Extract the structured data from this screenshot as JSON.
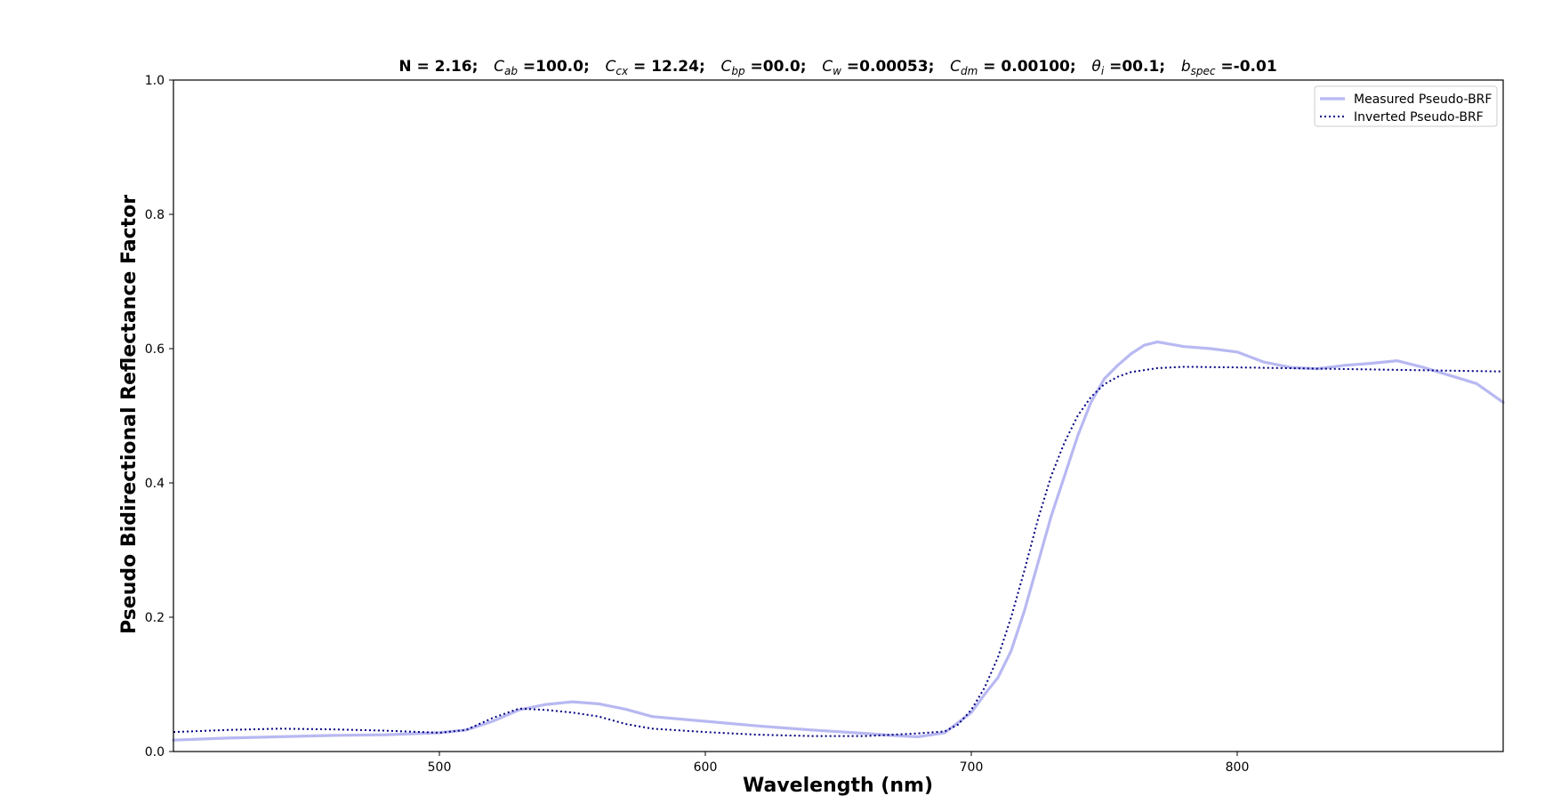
{
  "chart_data": {
    "type": "line",
    "title": {
      "parts": [
        {
          "sym": "",
          "sub": "",
          "val": "N = 2.16;"
        },
        {
          "sym": "C",
          "sub": "ab",
          "val": " =100.0;"
        },
        {
          "sym": "C",
          "sub": "cx",
          "val": " = 12.24;"
        },
        {
          "sym": "C",
          "sub": "bp",
          "val": " =00.0;"
        },
        {
          "sym": "C",
          "sub": "w",
          "val": " =0.00053;"
        },
        {
          "sym": "C",
          "sub": "dm",
          "val": " = 0.00100;"
        },
        {
          "sym": "θ",
          "sub": "i",
          "val": " =00.1;"
        },
        {
          "sym": "b",
          "sub": "spec",
          "val": " =-0.01"
        }
      ]
    },
    "xlabel": "Wavelength (nm)",
    "ylabel": "Pseudo Bidirectional Reflectance Factor",
    "xlim": [
      400,
      900
    ],
    "ylim": [
      0.0,
      1.0
    ],
    "xticks": [
      500,
      600,
      700,
      800
    ],
    "xtick_labels": [
      "500",
      "600",
      "700",
      "800"
    ],
    "yticks": [
      0.0,
      0.2,
      0.4,
      0.6,
      0.8,
      1.0
    ],
    "ytick_labels": [
      "0.0",
      "0.2",
      "0.4",
      "0.6",
      "0.8",
      "1.0"
    ],
    "grid": false,
    "legend": {
      "position": "top-right",
      "entries": [
        "Measured Pseudo-BRF",
        "Inverted Pseudo-BRF"
      ]
    },
    "series": [
      {
        "name": "Measured Pseudo-BRF",
        "color": "#b8b8f2",
        "style": "solid",
        "x": [
          400,
          420,
          440,
          460,
          480,
          500,
          510,
          520,
          530,
          540,
          550,
          560,
          570,
          580,
          600,
          620,
          640,
          660,
          670,
          680,
          690,
          700,
          705,
          710,
          715,
          720,
          725,
          730,
          735,
          740,
          745,
          750,
          755,
          760,
          765,
          770,
          780,
          790,
          800,
          810,
          820,
          830,
          840,
          850,
          860,
          870,
          880,
          890,
          900
        ],
        "y": [
          0.017,
          0.02,
          0.022,
          0.024,
          0.025,
          0.028,
          0.032,
          0.045,
          0.062,
          0.07,
          0.074,
          0.071,
          0.063,
          0.052,
          0.045,
          0.038,
          0.032,
          0.027,
          0.024,
          0.022,
          0.028,
          0.058,
          0.085,
          0.11,
          0.15,
          0.21,
          0.28,
          0.35,
          0.41,
          0.47,
          0.52,
          0.555,
          0.575,
          0.592,
          0.605,
          0.61,
          0.603,
          0.6,
          0.595,
          0.58,
          0.572,
          0.57,
          0.575,
          0.578,
          0.582,
          0.572,
          0.56,
          0.548,
          0.52
        ]
      },
      {
        "name": "Inverted Pseudo-BRF",
        "color": "#000080",
        "style": "dotted",
        "x": [
          400,
          420,
          440,
          460,
          480,
          500,
          510,
          520,
          530,
          540,
          550,
          560,
          570,
          580,
          600,
          620,
          640,
          660,
          680,
          690,
          695,
          700,
          705,
          710,
          715,
          720,
          725,
          730,
          735,
          740,
          745,
          750,
          755,
          760,
          770,
          780,
          800,
          850,
          900
        ],
        "y": [
          0.029,
          0.032,
          0.034,
          0.033,
          0.031,
          0.028,
          0.032,
          0.05,
          0.064,
          0.062,
          0.058,
          0.052,
          0.041,
          0.034,
          0.029,
          0.025,
          0.023,
          0.023,
          0.027,
          0.03,
          0.04,
          0.062,
          0.095,
          0.14,
          0.2,
          0.27,
          0.345,
          0.41,
          0.46,
          0.5,
          0.528,
          0.547,
          0.558,
          0.565,
          0.571,
          0.573,
          0.572,
          0.569,
          0.566
        ]
      }
    ]
  }
}
